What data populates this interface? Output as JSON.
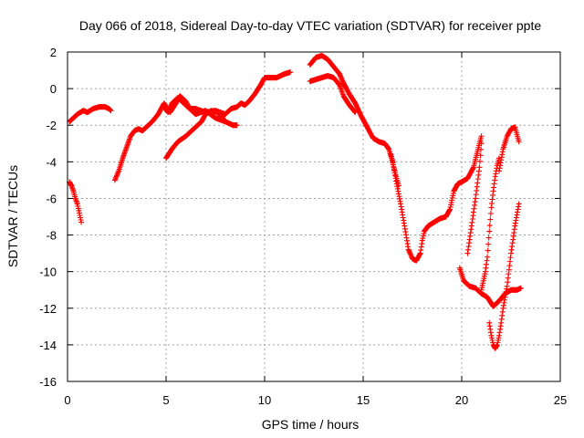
{
  "chart_data": {
    "type": "scatter",
    "title": "Day 066 of 2018, Sidereal Day-to-day VTEC variation (SDTVAR) for receiver ppte",
    "xlabel": "GPS time / hours",
    "ylabel": "SDTVAR / TECUs",
    "xlim": [
      0,
      25
    ],
    "ylim": [
      -16,
      2
    ],
    "xticks": [
      0,
      5,
      10,
      15,
      20,
      25
    ],
    "yticks": [
      -16,
      -14,
      -12,
      -10,
      -8,
      -6,
      -4,
      -2,
      0,
      2
    ],
    "grid": true,
    "marker": "+",
    "color": "#ff0000",
    "series": [
      {
        "x": [
          0.1,
          0.3,
          0.5,
          0.8,
          1.0,
          1.3,
          1.6,
          1.9,
          2.1,
          2.2
        ],
        "y": [
          -1.8,
          -1.6,
          -1.4,
          -1.2,
          -1.3,
          -1.1,
          -1.0,
          -1.0,
          -1.1,
          -1.2
        ]
      },
      {
        "x": [
          0.1,
          0.2,
          0.3,
          0.4,
          0.5,
          0.6,
          0.7
        ],
        "y": [
          -5.1,
          -5.3,
          -5.6,
          -6.0,
          -6.3,
          -6.8,
          -7.3
        ]
      },
      {
        "x": [
          2.4,
          2.6,
          2.8,
          3.0,
          3.2,
          3.4,
          3.6,
          3.8,
          4.0,
          4.3,
          4.6,
          4.9,
          5.0,
          5.2,
          5.5,
          5.7,
          6.0,
          6.2,
          6.5,
          7.0,
          7.5,
          8.0,
          8.3,
          8.6,
          8.8,
          9.0,
          9.2,
          9.5,
          9.8,
          10.0,
          10.3,
          10.6,
          11.0,
          11.3
        ],
        "y": [
          -5.0,
          -4.5,
          -3.8,
          -3.2,
          -2.6,
          -2.3,
          -2.2,
          -2.3,
          -2.1,
          -1.8,
          -1.4,
          -0.8,
          -1.0,
          -1.3,
          -0.8,
          -0.4,
          -0.7,
          -1.1,
          -1.1,
          -1.3,
          -1.2,
          -1.4,
          -1.1,
          -1.0,
          -0.8,
          -0.9,
          -0.7,
          -0.3,
          0.2,
          0.6,
          0.6,
          0.6,
          0.8,
          0.9
        ]
      },
      {
        "x": [
          4.9,
          5.1,
          5.3,
          5.6,
          6.0,
          6.5,
          7.0,
          7.5,
          8.0,
          8.4,
          8.6
        ],
        "y": [
          -1.0,
          -1.3,
          -0.8,
          -0.5,
          -0.9,
          -1.4,
          -1.2,
          -1.6,
          -1.8,
          -2.0,
          -2.0
        ]
      },
      {
        "x": [
          5.0,
          5.3,
          5.6,
          6.0,
          6.4,
          6.8,
          7.0,
          7.3,
          7.6,
          7.8,
          8.0
        ],
        "y": [
          -3.8,
          -3.3,
          -2.9,
          -2.6,
          -2.2,
          -1.8,
          -1.4,
          -1.2,
          -1.3,
          -1.5,
          -1.8
        ]
      },
      {
        "x": [
          12.3,
          12.6,
          12.9,
          13.2,
          13.5,
          13.8,
          14.0,
          14.3,
          14.6,
          14.9,
          15.2,
          15.5,
          15.8,
          16.1,
          16.3,
          16.5,
          16.7,
          16.9,
          17.1,
          17.3,
          17.5,
          17.7,
          17.9,
          18.0,
          18.1,
          18.3,
          18.6,
          18.9,
          19.2,
          19.4,
          19.6,
          19.8,
          20.0,
          20.3,
          20.6,
          20.9,
          21.0
        ],
        "y": [
          1.3,
          1.7,
          1.8,
          1.6,
          1.2,
          0.8,
          0.3,
          -0.3,
          -0.8,
          -1.5,
          -2.1,
          -2.7,
          -2.9,
          -3.0,
          -3.3,
          -4.0,
          -5.2,
          -6.3,
          -7.5,
          -8.8,
          -9.3,
          -9.4,
          -9.0,
          -8.3,
          -7.8,
          -7.5,
          -7.3,
          -7.1,
          -7.0,
          -6.6,
          -5.6,
          -5.2,
          -5.1,
          -4.9,
          -4.3,
          -3.0,
          -2.6
        ]
      },
      {
        "x": [
          12.3,
          12.6,
          12.9,
          13.2,
          13.5,
          13.8,
          14.0,
          14.3,
          14.6
        ],
        "y": [
          0.4,
          0.5,
          0.6,
          0.7,
          0.6,
          0.2,
          -0.4,
          -0.9,
          -1.3
        ]
      },
      {
        "x": [
          16.4,
          16.6,
          16.8
        ],
        "y": [
          -3.6,
          -4.5,
          -5.3
        ]
      },
      {
        "x": [
          19.9,
          20.1,
          20.4,
          20.7,
          21.0,
          21.3,
          21.6,
          21.9,
          22.2,
          22.5,
          22.8,
          23.0
        ],
        "y": [
          -9.8,
          -10.5,
          -10.8,
          -10.9,
          -11.2,
          -11.4,
          -11.9,
          -11.6,
          -11.2,
          -11.0,
          -11.0,
          -10.9
        ]
      },
      {
        "x": [
          20.3,
          20.5,
          20.7,
          20.9,
          21.0
        ],
        "y": [
          -9.0,
          -7.5,
          -6.0,
          -4.3,
          -3.0
        ]
      },
      {
        "x": [
          21.0,
          21.2,
          21.3,
          21.4,
          21.5,
          21.6,
          21.7,
          21.8,
          21.9
        ],
        "y": [
          -11.0,
          -10.0,
          -9.2,
          -7.8,
          -6.5,
          -5.6,
          -4.8,
          -4.2,
          -3.8
        ]
      },
      {
        "x": [
          21.4,
          21.5,
          21.6,
          21.7,
          21.8,
          21.9,
          22.0,
          22.1,
          22.3,
          22.5,
          22.7,
          22.9
        ],
        "y": [
          -12.8,
          -13.5,
          -14.0,
          -14.2,
          -14.0,
          -13.5,
          -12.8,
          -12.0,
          -10.8,
          -9.0,
          -7.5,
          -6.3
        ]
      },
      {
        "x": [
          21.9,
          22.1,
          22.3,
          22.5,
          22.7,
          22.9
        ],
        "y": [
          -4.5,
          -3.3,
          -2.6,
          -2.2,
          -2.1,
          -2.9
        ]
      }
    ]
  }
}
